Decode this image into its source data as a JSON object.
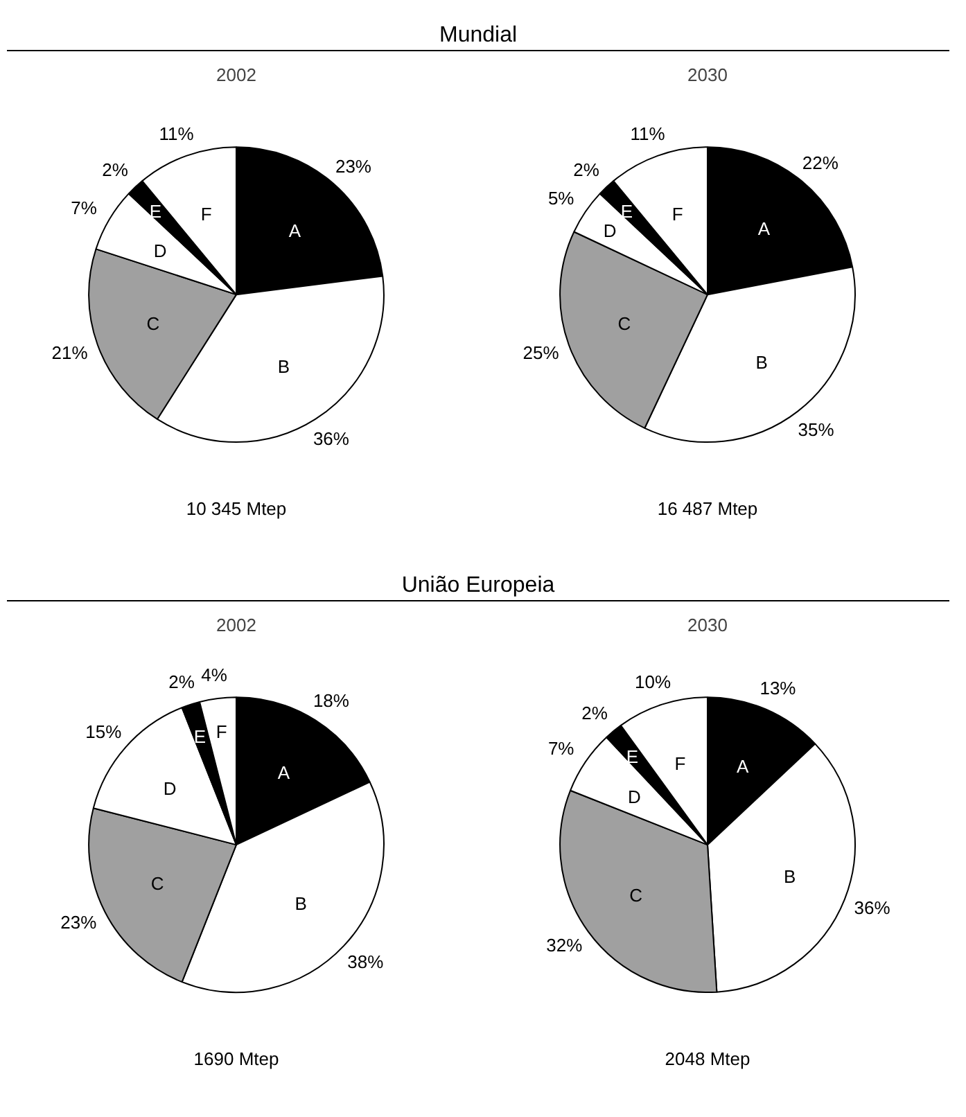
{
  "chart_data": [
    {
      "type": "pie",
      "title": "2002",
      "subtitle": "Mundial",
      "categories": [
        "A",
        "B",
        "C",
        "D",
        "E",
        "F"
      ],
      "values": [
        23,
        36,
        21,
        7,
        2,
        11
      ],
      "value_labels": [
        "23%",
        "36%",
        "21%",
        "7%",
        "2%",
        "11%"
      ],
      "colors": [
        "#000000",
        "#ffffff",
        "#a0a0a0",
        "#ffffff",
        "#000000",
        "#ffffff"
      ],
      "annotations": [
        "10 345 Mtep"
      ]
    },
    {
      "type": "pie",
      "title": "2030",
      "categories": [
        "A",
        "B",
        "C",
        "D",
        "E",
        "F"
      ],
      "values": [
        22,
        35,
        25,
        5,
        2,
        11
      ],
      "value_labels": [
        "22%",
        "35%",
        "25%",
        "5%",
        "2%",
        "11%"
      ],
      "colors": [
        "#000000",
        "#ffffff",
        "#a0a0a0",
        "#ffffff",
        "#000000",
        "#ffffff"
      ],
      "annotations": [
        "16 487 Mtep"
      ]
    },
    {
      "type": "pie",
      "title": "2002",
      "subtitle": "União Europeia",
      "categories": [
        "A",
        "B",
        "C",
        "D",
        "E",
        "F"
      ],
      "values": [
        18,
        38,
        23,
        15,
        2,
        4
      ],
      "value_labels": [
        "18%",
        "38%",
        "23%",
        "15%",
        "2%",
        "4%"
      ],
      "colors": [
        "#000000",
        "#ffffff",
        "#a0a0a0",
        "#ffffff",
        "#000000",
        "#ffffff"
      ],
      "annotations": [
        "1690 Mtep"
      ]
    },
    {
      "type": "pie",
      "title": "2030",
      "categories": [
        "A",
        "B",
        "C",
        "D",
        "E",
        "F"
      ],
      "values": [
        13,
        36,
        32,
        7,
        2,
        10
      ],
      "value_labels": [
        "13%",
        "36%",
        "32%",
        "7%",
        "2%",
        "10%"
      ],
      "colors": [
        "#000000",
        "#ffffff",
        "#a0a0a0",
        "#ffffff",
        "#000000",
        "#ffffff"
      ],
      "annotations": [
        "2048 Mtep"
      ]
    }
  ]
}
